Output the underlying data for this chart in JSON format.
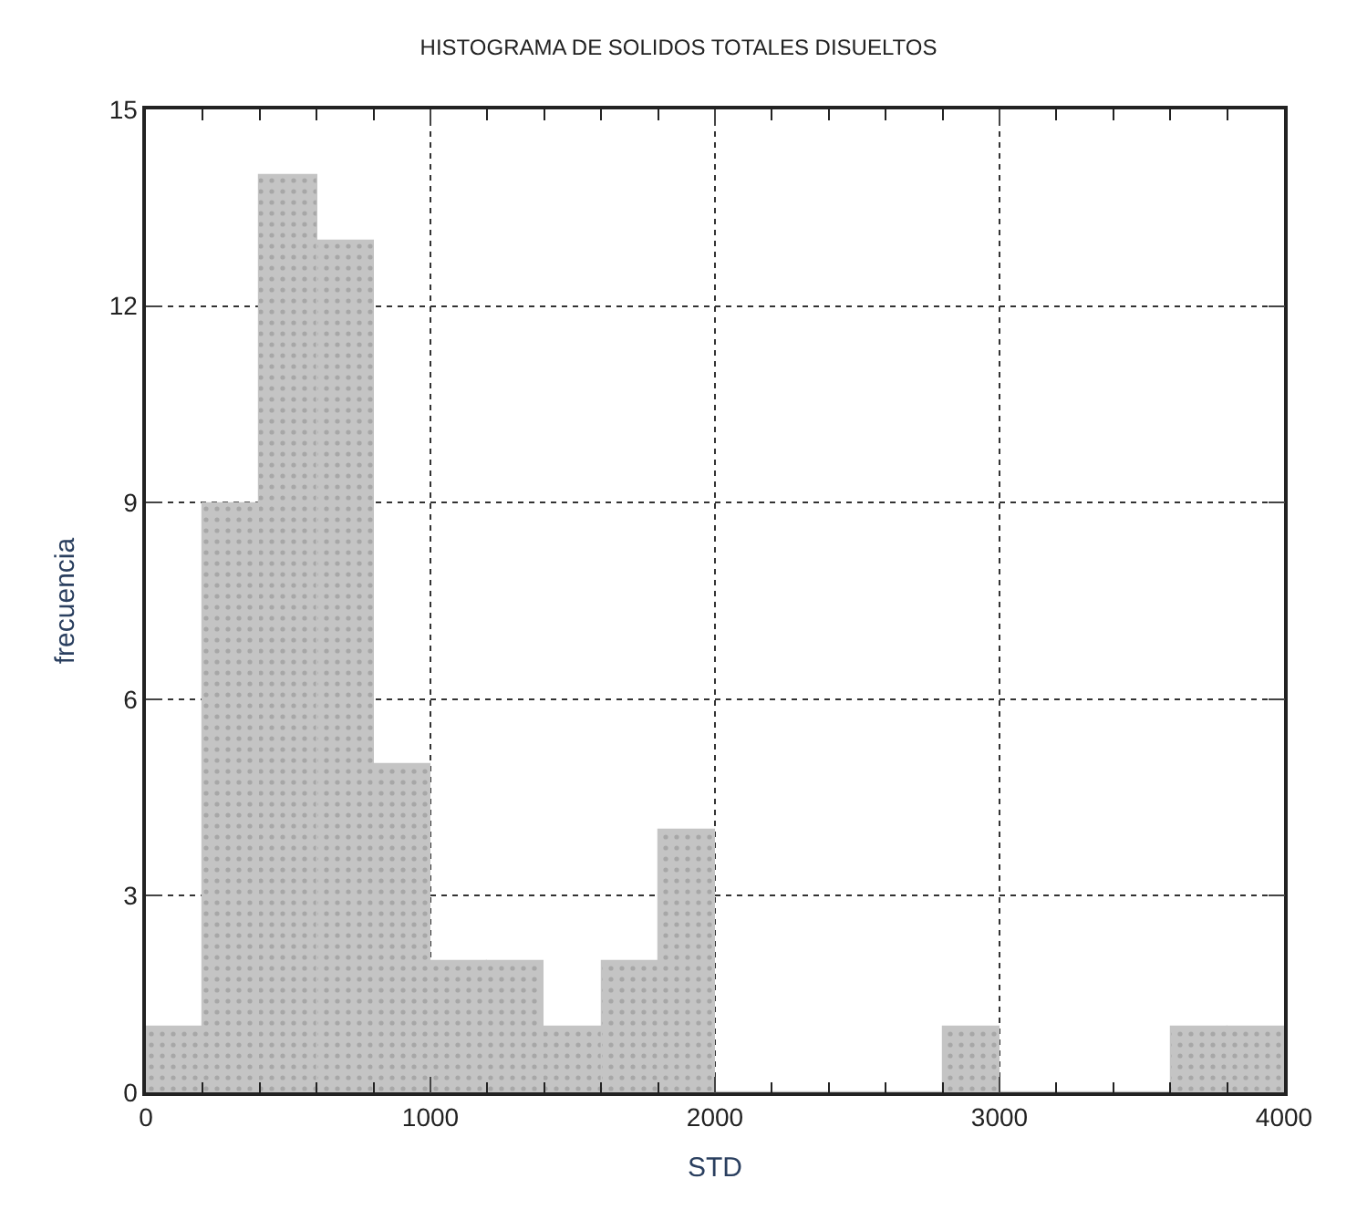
{
  "chart_data": {
    "type": "histogram",
    "title": "HISTOGRAMA DE SOLIDOS TOTALES DISUELTOS",
    "xlabel": "STD",
    "ylabel": "frecuencia",
    "bins": [
      0,
      200,
      400,
      600,
      800,
      1000,
      1200,
      1400,
      1600,
      1800,
      2000,
      2200,
      2400,
      2600,
      2800,
      3000,
      3200,
      3400,
      3600,
      3800,
      4000
    ],
    "values": [
      1,
      9,
      14,
      13,
      5,
      2,
      2,
      1,
      2,
      4,
      0,
      0,
      0,
      0,
      1,
      0,
      0,
      0,
      1,
      1
    ],
    "color": "#c4c4c4",
    "xlim": [
      0,
      4000
    ],
    "xticks": [
      0,
      {
        "value": 200,
        "label": null
      },
      {
        "value": 400,
        "label": null
      },
      {
        "value": 600,
        "label": null
      },
      {
        "value": 800,
        "label": null
      },
      1000,
      {
        "value": 1200,
        "label": null
      },
      {
        "value": 1400,
        "label": null
      },
      {
        "value": 1600,
        "label": null
      },
      {
        "value": 1800,
        "label": null
      },
      2000,
      {
        "value": 2200,
        "label": null
      },
      {
        "value": 2400,
        "label": null
      },
      {
        "value": 2600,
        "label": null
      },
      {
        "value": 2800,
        "label": null
      },
      3000,
      {
        "value": 3200,
        "label": null
      },
      {
        "value": 3400,
        "label": null
      },
      {
        "value": 3600,
        "label": null
      },
      {
        "value": 3800,
        "label": null
      },
      4000
    ],
    "ylim": [
      0,
      15
    ],
    "yticks": [
      0,
      3,
      6,
      9,
      12,
      15
    ],
    "grid": true,
    "line_style": "dotted"
  }
}
